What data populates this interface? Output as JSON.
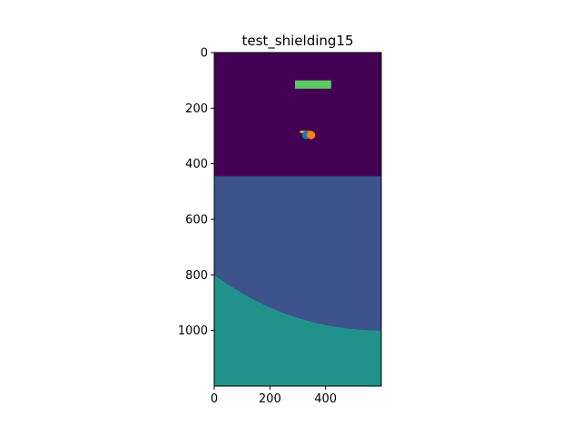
{
  "chart_data": {
    "type": "heatmap",
    "title": "test_shielding15",
    "xlabel": "",
    "ylabel": "",
    "xlim": [
      0,
      600
    ],
    "ylim": [
      1200,
      0
    ],
    "grid": false,
    "x_ticks": [
      0,
      200,
      400
    ],
    "y_ticks": [
      0,
      200,
      400,
      600,
      800,
      1000
    ],
    "colors": {
      "background": "#440154",
      "layer": "#3b528b",
      "deep": "#21918c",
      "block": "#5ec962",
      "thin_bar": "#fde725",
      "point_blue": "#1f77b4",
      "point_orange": "#ff7f0e"
    },
    "regions": [
      {
        "name": "background",
        "y_from": 0,
        "y_to": 445
      },
      {
        "name": "layer",
        "y_from": 445,
        "y_to": 1200
      },
      {
        "name": "deep",
        "arc": {
          "start": [
            0,
            800
          ],
          "end": [
            600,
            1000
          ],
          "control": [
            270,
            1000
          ]
        }
      }
    ],
    "rectangles": [
      {
        "name": "block",
        "x0": 290,
        "x1": 420,
        "y0": 100,
        "y1": 130
      },
      {
        "name": "thin_bar",
        "x0": 308,
        "x1": 350,
        "y0": 282,
        "y1": 289
      }
    ],
    "points": [
      {
        "name": "point_blue",
        "x": 330,
        "y": 297
      },
      {
        "name": "point_orange",
        "x": 348,
        "y": 297
      }
    ]
  }
}
